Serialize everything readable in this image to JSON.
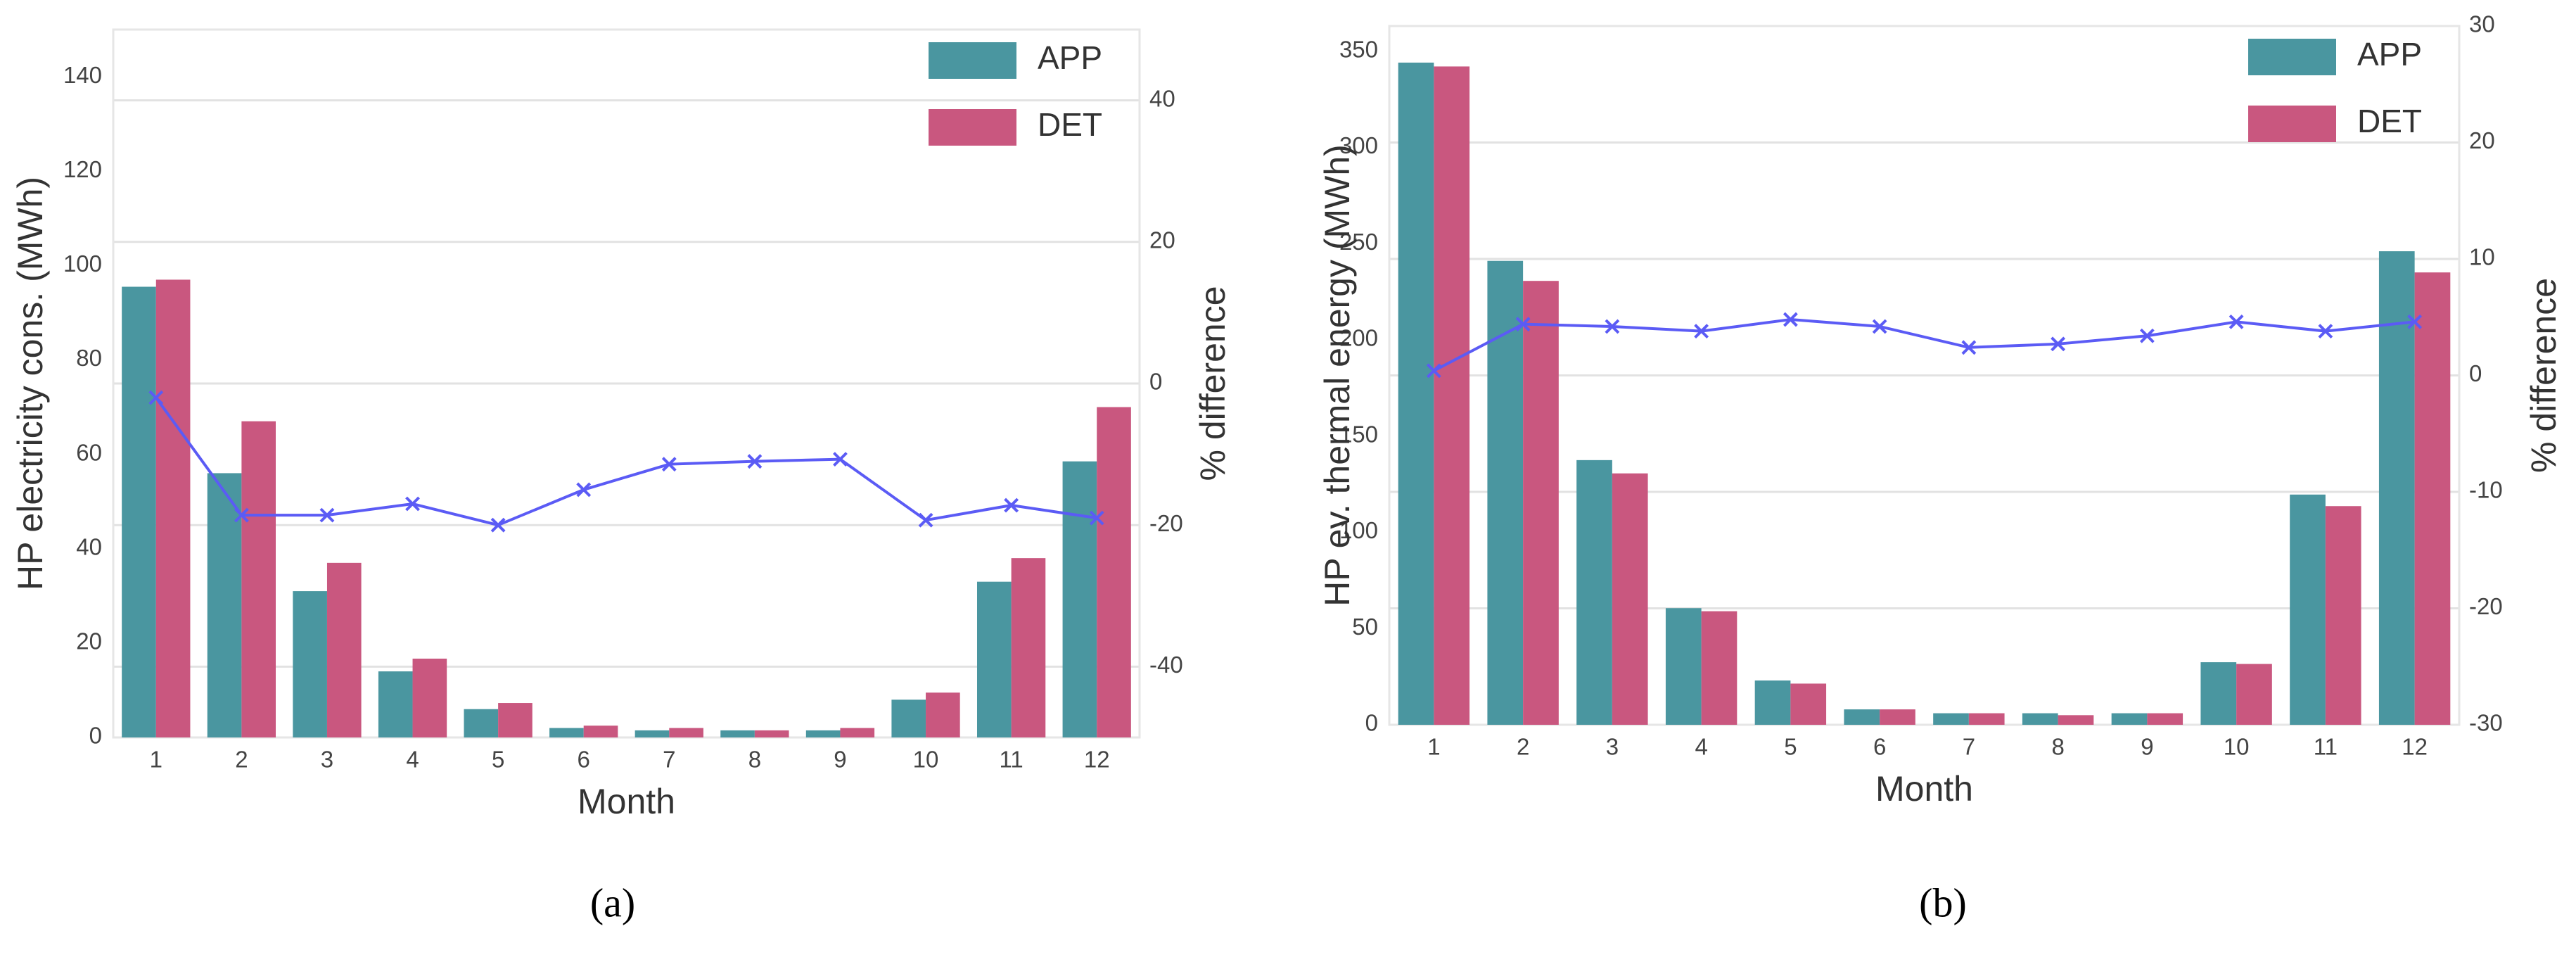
{
  "chart_data": [
    {
      "type": "bar",
      "caption": "(a)",
      "xlabel": "Month",
      "ylabel": "HP electricity cons. (MWh)",
      "y2label": "% difference",
      "categories": [
        "1",
        "2",
        "3",
        "4",
        "5",
        "6",
        "7",
        "8",
        "9",
        "10",
        "11",
        "12"
      ],
      "series": [
        {
          "name": "APP",
          "color": "#4a96a0",
          "values": [
            95.5,
            56,
            31,
            14,
            6,
            2,
            1.5,
            1.5,
            1.5,
            8,
            33,
            58.5
          ]
        },
        {
          "name": "DET",
          "color": "#c9577f",
          "values": [
            97,
            67,
            37,
            16.7,
            7.3,
            2.5,
            2,
            1.5,
            2,
            9.5,
            38,
            70
          ]
        },
        {
          "color": "#5b5bf5",
          "axis": "y2",
          "values": [
            -2,
            -18.6,
            -18.6,
            -17,
            -20,
            -15,
            -11.4,
            -11,
            -10.7,
            -19.3,
            -17.2,
            -19
          ]
        }
      ],
      "ylim": [
        0,
        150
      ],
      "yticks": [
        0,
        20,
        40,
        60,
        80,
        100,
        120,
        140
      ],
      "y2lim": [
        -50,
        50
      ],
      "y2ticks": [
        -40,
        -20,
        0,
        20,
        40
      ],
      "grid": true,
      "legend": "upper right"
    },
    {
      "type": "bar",
      "caption": "(b)",
      "xlabel": "Month",
      "ylabel": "HP ev. thermal energy (MWh)",
      "y2label": "% difference",
      "categories": [
        "1",
        "2",
        "3",
        "4",
        "5",
        "6",
        "7",
        "8",
        "9",
        "10",
        "11",
        "12"
      ],
      "series": [
        {
          "name": "APP",
          "color": "#4a96a0",
          "values": [
            344,
            241,
            137.5,
            60.6,
            23,
            8,
            6,
            6,
            6,
            32.5,
            119.6,
            246
          ]
        },
        {
          "name": "DET",
          "color": "#c9577f",
          "values": [
            342,
            230.6,
            130.6,
            59,
            21.4,
            8,
            6,
            5,
            6,
            31.6,
            113.6,
            235
          ]
        },
        {
          "color": "#5b5bf5",
          "axis": "y2",
          "values": [
            0.4,
            4.4,
            4.2,
            3.8,
            4.8,
            4.2,
            2.4,
            2.7,
            3.4,
            4.6,
            3.8,
            4.6
          ]
        }
      ],
      "ylim": [
        0,
        363
      ],
      "yticks": [
        0,
        50,
        100,
        150,
        200,
        250,
        300,
        350
      ],
      "y2lim": [
        -30,
        30
      ],
      "y2ticks": [
        -30,
        -20,
        -10,
        0,
        10,
        20,
        30
      ],
      "grid": true,
      "legend": "upper right"
    }
  ]
}
